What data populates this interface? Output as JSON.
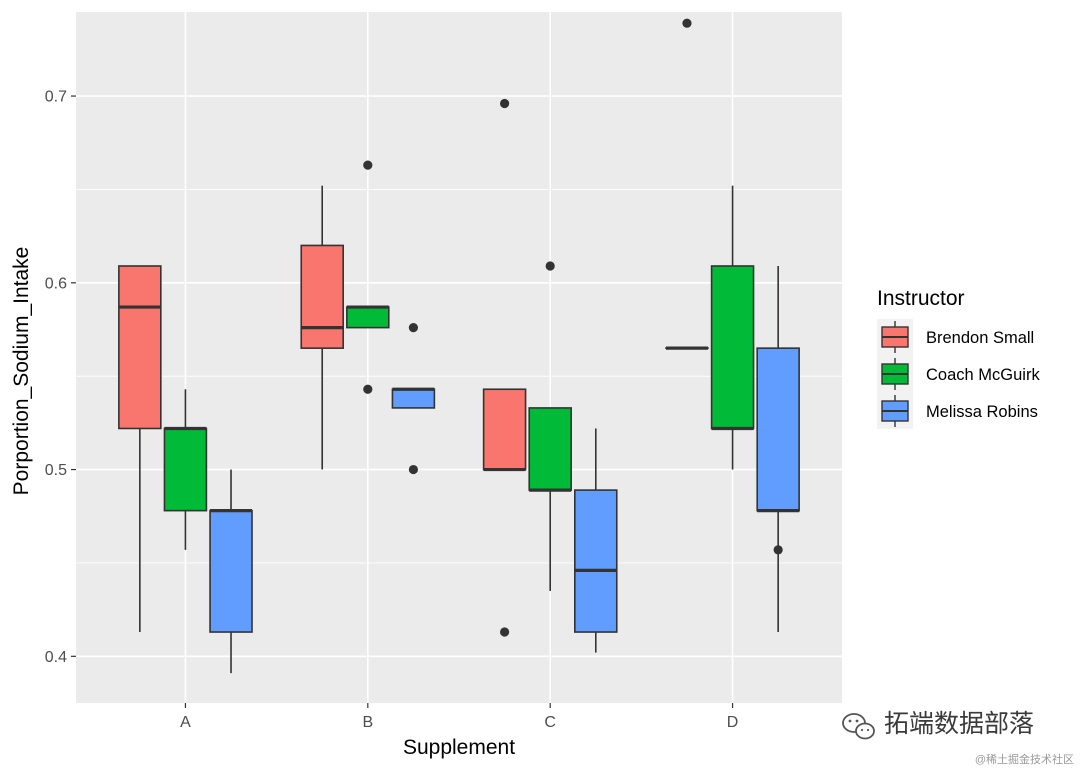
{
  "chart_data": {
    "type": "boxplot",
    "title": "",
    "xlabel": "Supplement",
    "ylabel": "Porportion_Sodium_Intake",
    "ylim": [
      0.375,
      0.745
    ],
    "yticks": [
      0.4,
      0.5,
      0.6,
      0.7
    ],
    "ytick_labels": [
      "0.4",
      "0.5",
      "0.6",
      "0.7"
    ],
    "grid": true,
    "categories": [
      "A",
      "B",
      "C",
      "D"
    ],
    "legend": {
      "title": "Instructor",
      "position": "right"
    },
    "series": [
      {
        "name": "Brendon Small",
        "color": "#F8766D",
        "boxes": [
          {
            "category": "A",
            "lower_whisker": 0.413,
            "q1": 0.522,
            "median": 0.587,
            "q3": 0.609,
            "upper_whisker": 0.609,
            "outliers": []
          },
          {
            "category": "B",
            "lower_whisker": 0.5,
            "q1": 0.565,
            "median": 0.576,
            "q3": 0.62,
            "upper_whisker": 0.652,
            "outliers": []
          },
          {
            "category": "C",
            "lower_whisker": 0.5,
            "q1": 0.5,
            "median": 0.5,
            "q3": 0.543,
            "upper_whisker": 0.543,
            "outliers": [
              0.413,
              0.696
            ]
          },
          {
            "category": "D",
            "lower_whisker": 0.565,
            "q1": 0.565,
            "median": 0.565,
            "q3": 0.565,
            "upper_whisker": 0.565,
            "outliers": [
              0.739
            ]
          }
        ]
      },
      {
        "name": "Coach McGuirk",
        "color": "#00BA38",
        "boxes": [
          {
            "category": "A",
            "lower_whisker": 0.457,
            "q1": 0.478,
            "median": 0.522,
            "q3": 0.522,
            "upper_whisker": 0.543,
            "outliers": []
          },
          {
            "category": "B",
            "lower_whisker": 0.576,
            "q1": 0.576,
            "median": 0.587,
            "q3": 0.587,
            "upper_whisker": 0.587,
            "outliers": [
              0.543,
              0.663
            ]
          },
          {
            "category": "C",
            "lower_whisker": 0.435,
            "q1": 0.489,
            "median": 0.489,
            "q3": 0.533,
            "upper_whisker": 0.533,
            "outliers": [
              0.609
            ]
          },
          {
            "category": "D",
            "lower_whisker": 0.5,
            "q1": 0.522,
            "median": 0.522,
            "q3": 0.609,
            "upper_whisker": 0.652,
            "outliers": []
          }
        ]
      },
      {
        "name": "Melissa Robins",
        "color": "#619CFF",
        "boxes": [
          {
            "category": "A",
            "lower_whisker": 0.391,
            "q1": 0.413,
            "median": 0.478,
            "q3": 0.478,
            "upper_whisker": 0.5,
            "outliers": []
          },
          {
            "category": "B",
            "lower_whisker": 0.533,
            "q1": 0.533,
            "median": 0.543,
            "q3": 0.543,
            "upper_whisker": 0.543,
            "outliers": [
              0.5,
              0.576
            ]
          },
          {
            "category": "C",
            "lower_whisker": 0.402,
            "q1": 0.413,
            "median": 0.446,
            "q3": 0.489,
            "upper_whisker": 0.522,
            "outliers": []
          },
          {
            "category": "D",
            "lower_whisker": 0.413,
            "q1": 0.478,
            "median": 0.478,
            "q3": 0.565,
            "upper_whisker": 0.609,
            "outliers": [
              0.457
            ]
          }
        ]
      }
    ]
  },
  "watermark": {
    "icon": "wechat-icon",
    "main": "拓端数据部落",
    "sub": "@稀土掘金技术社区"
  },
  "colors": {
    "panel": "#EBEBEB",
    "grid": "#FFFFFF",
    "axis_text": "#4D4D4D",
    "line": "#333333"
  }
}
